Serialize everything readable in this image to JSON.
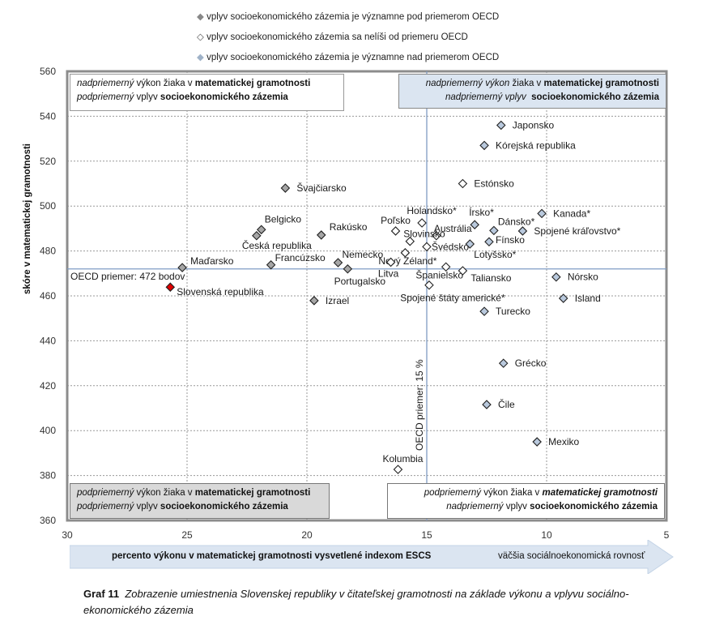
{
  "legend": [
    {
      "label": "vplyv socioekonomického zázemia je významne pod priemerom OECD",
      "marker_color": "#a6a6a6"
    },
    {
      "label": "vplyv socioekonomického zázemia sa nelíši od priemeru OECD",
      "marker_color": "#ffffff"
    },
    {
      "label": "vplyv socioekonomického zázemia je významne nad priemerom OECD",
      "marker_color": "#b9c9dd"
    }
  ],
  "quadrants": {
    "top_left": {
      "l1_i": "nadpriemerný",
      "l1_n": " výkon žiaka v ",
      "l1_b": "matematickej gramotnosti",
      "l2_i": "podpriemerný",
      "l2_n": " vplyv ",
      "l2_b": "socioekonomického zázemia"
    },
    "top_right": {
      "l1_i": "nadpriemerný výkon",
      "l1_n": " žiaka v ",
      "l1_b": "matematickej gramotnosti",
      "l2_i": "nadpriemerný vplyv",
      "l2_n": "  ",
      "l2_b": "socioekonomického zázemia"
    },
    "bottom_left": {
      "l1_i": "podpriemerný",
      "l1_n": " výkon žiaka v ",
      "l1_b": "matematickej gramotnosti",
      "l2_i": "podpriemerný",
      "l2_n": " vplyv ",
      "l2_b": "socioekonomického zázemia"
    },
    "bottom_right": {
      "l1_i": "podpriemerný",
      "l1_n": " výkon žiaka v ",
      "l1_b": "matematickej gramotnosti",
      "l2_i": "nadpriemerný",
      "l2_n": " vplyv ",
      "l2_b": "socioekonomického zázemia"
    }
  },
  "arrow": {
    "left_text": "percento výkonu v matematickej gramotnosti vysvetlené indexom ESCS",
    "right_text": "väčšia sociálnoekonomická rovnosť"
  },
  "caption": {
    "number": "Graf 11",
    "text": "Zobrazenie umiestnenia Slovenskej republiky v čitateľskej gramotnosti na základe výkonu a vplyvu sociálno-ekonomického zázemia"
  },
  "chart_data": {
    "type": "scatter",
    "ylabel": "skóre v matematickej gramotnosti",
    "xlabel": "percento výkonu v matematickej gramotnosti vysvetlené indexom ESCS",
    "xlim": [
      30,
      5
    ],
    "ylim": [
      360,
      560
    ],
    "x_reversed": true,
    "xticks": [
      30,
      25,
      20,
      15,
      10,
      5
    ],
    "yticks": [
      360,
      380,
      400,
      420,
      440,
      460,
      480,
      500,
      520,
      540,
      560
    ],
    "grid": true,
    "oecd_mean_y": 472,
    "oecd_mean_y_label": "OECD priemer: 472 bodov",
    "oecd_mean_x": 15,
    "oecd_mean_x_label": "OECD priemer: 15 %",
    "category_colors": {
      "below": "#a6a6a6",
      "same": "#ffffff",
      "above": "#b9c9dd",
      "slovakia": "#e00000"
    },
    "points": [
      {
        "name": "Japonsko",
        "x": 11.9,
        "y": 536,
        "cat": "above"
      },
      {
        "name": "Kórejská republika",
        "x": 12.6,
        "y": 527,
        "cat": "above"
      },
      {
        "name": "Estónsko",
        "x": 13.5,
        "y": 510,
        "cat": "same"
      },
      {
        "name": "Švajčiarsko",
        "x": 20.9,
        "y": 508,
        "cat": "below"
      },
      {
        "name": "Holandsko*",
        "x": 15.2,
        "y": 492.5,
        "cat": "same"
      },
      {
        "name": "Írsko*",
        "x": 13.0,
        "y": 491.7,
        "cat": "above"
      },
      {
        "name": "Kanada*",
        "x": 10.2,
        "y": 496.7,
        "cat": "above"
      },
      {
        "name": "Dánsko*",
        "x": 12.2,
        "y": 489.1,
        "cat": "above"
      },
      {
        "name": "Spojené kráľovstvo*",
        "x": 11.0,
        "y": 488.9,
        "cat": "above"
      },
      {
        "name": "Belgicko",
        "x": 21.9,
        "y": 489.5,
        "cat": "below"
      },
      {
        "name": "Česká republika",
        "x": 22.1,
        "y": 486.8,
        "cat": "below"
      },
      {
        "name": "Rakúsko",
        "x": 19.4,
        "y": 487.1,
        "cat": "below"
      },
      {
        "name": "Poľsko",
        "x": 16.3,
        "y": 488.9,
        "cat": "same"
      },
      {
        "name": "Austrália",
        "x": 14.6,
        "y": 486.8,
        "cat": "same"
      },
      {
        "name": "Slovinsko",
        "x": 15.7,
        "y": 484.3,
        "cat": "same"
      },
      {
        "name": "Švédsko",
        "x": 15.0,
        "y": 481.9,
        "cat": "same"
      },
      {
        "name": "Fínsko",
        "x": 12.4,
        "y": 484.1,
        "cat": "above"
      },
      {
        "name": "Lotyšsko*",
        "x": 13.2,
        "y": 483.1,
        "cat": "above"
      },
      {
        "name": "Nový Zéland*",
        "x": 15.9,
        "y": 479.2,
        "cat": "same"
      },
      {
        "name": "Litva",
        "x": 16.5,
        "y": 475.0,
        "cat": "same"
      },
      {
        "name": "Španielsko",
        "x": 14.2,
        "y": 472.9,
        "cat": "same"
      },
      {
        "name": "Taliansko",
        "x": 13.5,
        "y": 471.2,
        "cat": "same"
      },
      {
        "name": "Spojené štáty americké*",
        "x": 14.9,
        "y": 464.8,
        "cat": "same"
      },
      {
        "name": "Turecko",
        "x": 12.6,
        "y": 453.1,
        "cat": "above"
      },
      {
        "name": "Nórsko",
        "x": 9.6,
        "y": 468.4,
        "cat": "above"
      },
      {
        "name": "Island",
        "x": 9.3,
        "y": 458.9,
        "cat": "above"
      },
      {
        "name": "Grécko",
        "x": 11.8,
        "y": 430,
        "cat": "above"
      },
      {
        "name": "Čile",
        "x": 12.5,
        "y": 411.6,
        "cat": "above"
      },
      {
        "name": "Mexiko",
        "x": 10.4,
        "y": 395,
        "cat": "above"
      },
      {
        "name": "Kolumbia",
        "x": 16.2,
        "y": 382.7,
        "cat": "same"
      },
      {
        "name": "Maďarsko",
        "x": 25.2,
        "y": 472.6,
        "cat": "below"
      },
      {
        "name": "Francúzsko",
        "x": 21.5,
        "y": 473.8,
        "cat": "below"
      },
      {
        "name": "Nemecko",
        "x": 18.7,
        "y": 474.8,
        "cat": "below"
      },
      {
        "name": "Portugalsko",
        "x": 18.3,
        "y": 472.0,
        "cat": "below"
      },
      {
        "name": "Izrael",
        "x": 19.7,
        "y": 457.9,
        "cat": "below"
      },
      {
        "name": "Slovenská republika",
        "x": 25.7,
        "y": 463.9,
        "cat": "slovakia"
      }
    ]
  }
}
